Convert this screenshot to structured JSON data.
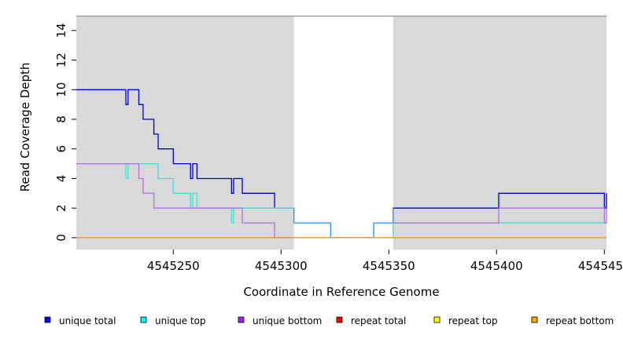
{
  "chart_data": {
    "type": "line",
    "title": "",
    "xlabel": "Coordinate in Reference Genome",
    "ylabel": "Read Coverage Depth",
    "xlim": [
      4545205,
      4545451
    ],
    "ylim": [
      -0.8,
      15
    ],
    "x_ticks": [
      4545250,
      4545300,
      4545350,
      4545400,
      4545450
    ],
    "x_tick_labels": [
      "4545250",
      "4545300",
      "4545350",
      "4545400",
      "4545450"
    ],
    "y_ticks": [
      0,
      2,
      4,
      6,
      8,
      10,
      12,
      14
    ],
    "y_tick_labels": [
      "0",
      "2",
      "4",
      "6",
      "8",
      "10",
      "12",
      "14"
    ],
    "shaded_regions": [
      {
        "x": [
          4545205,
          4545306
        ],
        "color": "#d9d9d9"
      },
      {
        "x": [
          4545352,
          4545451
        ],
        "color": "#d9d9d9"
      }
    ],
    "legend_position": "bottom",
    "series": [
      {
        "name": "unique total",
        "color": "#0000cd",
        "points": [
          [
            4545205,
            10
          ],
          [
            4545228,
            10
          ],
          [
            4545228,
            9
          ],
          [
            4545229,
            9
          ],
          [
            4545229,
            10
          ],
          [
            4545234,
            10
          ],
          [
            4545234,
            9
          ],
          [
            4545236,
            9
          ],
          [
            4545236,
            8
          ],
          [
            4545241,
            8
          ],
          [
            4545241,
            7
          ],
          [
            4545243,
            7
          ],
          [
            4545243,
            6
          ],
          [
            4545250,
            6
          ],
          [
            4545250,
            5
          ],
          [
            4545258,
            5
          ],
          [
            4545258,
            4
          ],
          [
            4545259,
            4
          ],
          [
            4545259,
            5
          ],
          [
            4545261,
            5
          ],
          [
            4545261,
            4
          ],
          [
            4545277,
            4
          ],
          [
            4545277,
            3
          ],
          [
            4545278,
            3
          ],
          [
            4545278,
            4
          ],
          [
            4545282,
            4
          ],
          [
            4545282,
            3
          ],
          [
            4545297,
            3
          ],
          [
            4545297,
            2
          ],
          [
            4545306,
            2
          ]
        ]
      },
      {
        "name": "unique total",
        "color": "#1e90ff",
        "points": [
          [
            4545297,
            2
          ],
          [
            4545306,
            2
          ],
          [
            4545306,
            1
          ],
          [
            4545323,
            1
          ],
          [
            4545323,
            0
          ],
          [
            4545343,
            0
          ],
          [
            4545343,
            1
          ],
          [
            4545352,
            1
          ],
          [
            4545352,
            2
          ]
        ]
      },
      {
        "name": "unique total",
        "color": "#0000cd",
        "points": [
          [
            4545352,
            2
          ],
          [
            4545401,
            2
          ],
          [
            4545401,
            3
          ],
          [
            4545450,
            3
          ],
          [
            4545450,
            2
          ],
          [
            4545451,
            2
          ],
          [
            4545451,
            3
          ]
        ]
      },
      {
        "name": "unique top",
        "color": "#40e0d0",
        "points": [
          [
            4545205,
            5
          ],
          [
            4545228,
            5
          ],
          [
            4545228,
            4
          ],
          [
            4545229,
            4
          ],
          [
            4545229,
            5
          ],
          [
            4545243,
            5
          ],
          [
            4545243,
            4
          ],
          [
            4545250,
            4
          ],
          [
            4545250,
            3
          ],
          [
            4545258,
            3
          ],
          [
            4545258,
            2
          ],
          [
            4545259,
            2
          ],
          [
            4545259,
            3
          ],
          [
            4545261,
            3
          ],
          [
            4545261,
            2
          ],
          [
            4545277,
            2
          ],
          [
            4545277,
            1
          ],
          [
            4545278,
            1
          ],
          [
            4545278,
            2
          ],
          [
            4545306,
            2
          ]
        ]
      },
      {
        "name": "unique top",
        "color": "#40e0d0",
        "points": [
          [
            4545352,
            0
          ],
          [
            4545352,
            1
          ],
          [
            4545451,
            1
          ]
        ]
      },
      {
        "name": "unique bottom",
        "color": "#b070e0",
        "points": [
          [
            4545205,
            5
          ],
          [
            4545234,
            5
          ],
          [
            4545234,
            4
          ],
          [
            4545236,
            4
          ],
          [
            4545236,
            3
          ],
          [
            4545241,
            3
          ],
          [
            4545241,
            2
          ],
          [
            4545282,
            2
          ],
          [
            4545282,
            1
          ],
          [
            4545297,
            1
          ],
          [
            4545297,
            0
          ],
          [
            4545306,
            0
          ]
        ]
      },
      {
        "name": "unique bottom",
        "color": "#b070e0",
        "points": [
          [
            4545352,
            1
          ],
          [
            4545401,
            1
          ],
          [
            4545401,
            2
          ],
          [
            4545450,
            2
          ],
          [
            4545450,
            1
          ],
          [
            4545451,
            1
          ],
          [
            4545451,
            2
          ]
        ]
      },
      {
        "name": "repeat total",
        "color": "#ff8c00",
        "points": [
          [
            4545205,
            0
          ],
          [
            4545451,
            0
          ]
        ]
      }
    ]
  },
  "legend": [
    {
      "label": "unique total",
      "color": "#0000ff"
    },
    {
      "label": "unique top",
      "color": "#00ffff"
    },
    {
      "label": "unique bottom",
      "color": "#a020f0"
    },
    {
      "label": "repeat total",
      "color": "#ff0000"
    },
    {
      "label": "repeat top",
      "color": "#ffff00"
    },
    {
      "label": "repeat bottom",
      "color": "#ffa500"
    }
  ]
}
